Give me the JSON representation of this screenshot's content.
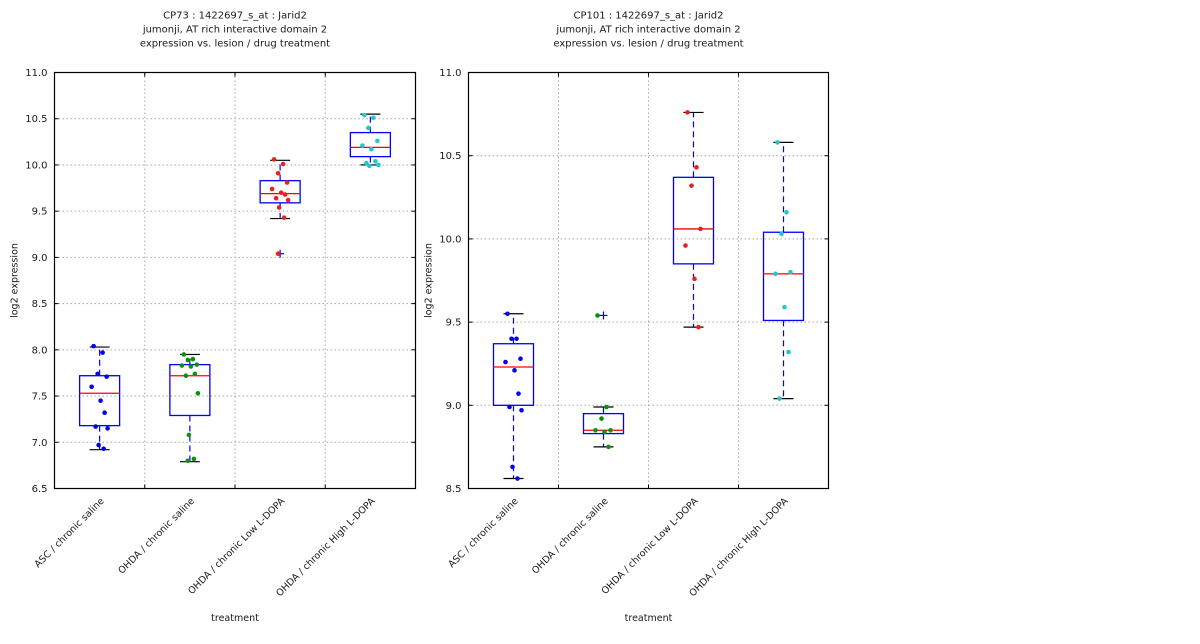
{
  "figure": {
    "background": "#ffffff",
    "text_color": "#1a1a1a",
    "grid_color": "#a8a8a8"
  },
  "chart_data": [
    {
      "type": "boxplot",
      "title_lines": [
        "CP73 : 1422697_s_at : Jarid2",
        "jumonji, AT rich interactive domain 2",
        "expression vs. lesion / drug treatment"
      ],
      "xlabel": "treatment",
      "ylabel": "log2 expression",
      "ylim": [
        6.5,
        11.0
      ],
      "ytick_step": 0.5,
      "ytick_labels": [
        "6.5",
        "7.0",
        "7.5",
        "8.0",
        "8.5",
        "9.0",
        "9.5",
        "10.0",
        "10.5",
        "11.0"
      ],
      "grid": true,
      "legend": "none",
      "colors": {
        "box": "#0000ff",
        "median": "#ff0000",
        "whisker": "#0000ff",
        "cap": "#000000",
        "flier": "#0000ff"
      },
      "categories": [
        "ASC / chronic saline",
        "OHDA / chronic saline",
        "OHDA / chronic Low L-DOPA",
        "OHDA / chronic High L-DOPA"
      ],
      "groups": [
        {
          "category": "ASC / chronic saline",
          "point_color": "#0000ee",
          "box": {
            "whisker_low": 6.92,
            "q1": 7.18,
            "median": 7.53,
            "q3": 7.72,
            "whisker_high": 8.03
          },
          "points": [
            8.04,
            7.97,
            7.74,
            7.71,
            7.6,
            7.45,
            7.32,
            7.17,
            7.15,
            6.97,
            6.93
          ],
          "fliers": []
        },
        {
          "category": "OHDA / chronic saline",
          "point_color": "#0a930a",
          "box": {
            "whisker_low": 6.79,
            "q1": 7.29,
            "median": 7.72,
            "q3": 7.84,
            "whisker_high": 7.95
          },
          "points": [
            7.95,
            7.9,
            7.89,
            7.84,
            7.83,
            7.82,
            7.74,
            7.72,
            7.53,
            7.08,
            6.82,
            6.8
          ],
          "fliers": []
        },
        {
          "category": "OHDA / chronic Low L-DOPA",
          "point_color": "#e82020",
          "box": {
            "whisker_low": 9.42,
            "q1": 9.59,
            "median": 9.69,
            "q3": 9.83,
            "whisker_high": 10.05
          },
          "points": [
            10.06,
            10.01,
            9.91,
            9.81,
            9.74,
            9.7,
            9.68,
            9.64,
            9.62,
            9.54,
            9.43,
            9.04
          ],
          "fliers": [
            9.04
          ]
        },
        {
          "category": "OHDA / chronic High L-DOPA",
          "point_color": "#20c8c8",
          "box": {
            "whisker_low": 10.0,
            "q1": 10.09,
            "median": 10.19,
            "q3": 10.35,
            "whisker_high": 10.55
          },
          "points": [
            10.54,
            10.51,
            10.4,
            10.26,
            10.21,
            10.17,
            10.04,
            10.02,
            10.0,
            9.99
          ],
          "fliers": []
        }
      ]
    },
    {
      "type": "boxplot",
      "title_lines": [
        "CP101 : 1422697_s_at : Jarid2",
        "jumonji, AT rich interactive domain 2",
        "expression vs. lesion / drug treatment"
      ],
      "xlabel": "treatment",
      "ylabel": "log2 expression",
      "ylim": [
        8.5,
        11.0
      ],
      "ytick_step": 0.5,
      "ytick_labels": [
        "8.5",
        "9.0",
        "9.5",
        "10.0",
        "10.5",
        "11.0"
      ],
      "grid": true,
      "legend": "none",
      "colors": {
        "box": "#0000ff",
        "median": "#ff0000",
        "whisker": "#0000ff",
        "cap": "#000000",
        "flier": "#0000ff"
      },
      "categories": [
        "ASC / chronic saline",
        "OHDA / chronic saline",
        "OHDA / chronic Low L-DOPA",
        "OHDA / chronic High L-DOPA"
      ],
      "groups": [
        {
          "category": "ASC / chronic saline",
          "point_color": "#0000ee",
          "box": {
            "whisker_low": 8.56,
            "q1": 9.0,
            "median": 9.23,
            "q3": 9.37,
            "whisker_high": 9.55
          },
          "points": [
            9.55,
            9.4,
            9.4,
            9.28,
            9.26,
            9.21,
            9.07,
            8.99,
            8.97,
            8.63,
            8.56
          ],
          "fliers": []
        },
        {
          "category": "OHDA / chronic saline",
          "point_color": "#0a930a",
          "box": {
            "whisker_low": 8.75,
            "q1": 8.83,
            "median": 8.85,
            "q3": 8.95,
            "whisker_high": 8.99
          },
          "points": [
            9.54,
            8.99,
            8.92,
            8.85,
            8.85,
            8.84,
            8.75
          ],
          "fliers": [
            9.54
          ]
        },
        {
          "category": "OHDA / chronic Low L-DOPA",
          "point_color": "#e82020",
          "box": {
            "whisker_low": 9.47,
            "q1": 9.85,
            "median": 10.06,
            "q3": 10.37,
            "whisker_high": 10.76
          },
          "points": [
            10.76,
            10.43,
            10.32,
            10.06,
            9.96,
            9.76,
            9.47
          ],
          "fliers": []
        },
        {
          "category": "OHDA / chronic High L-DOPA",
          "point_color": "#20c8c8",
          "box": {
            "whisker_low": 9.04,
            "q1": 9.51,
            "median": 9.79,
            "q3": 10.04,
            "whisker_high": 10.58
          },
          "points": [
            10.58,
            10.16,
            10.03,
            9.8,
            9.79,
            9.59,
            9.32,
            9.04
          ],
          "fliers": []
        }
      ]
    }
  ]
}
